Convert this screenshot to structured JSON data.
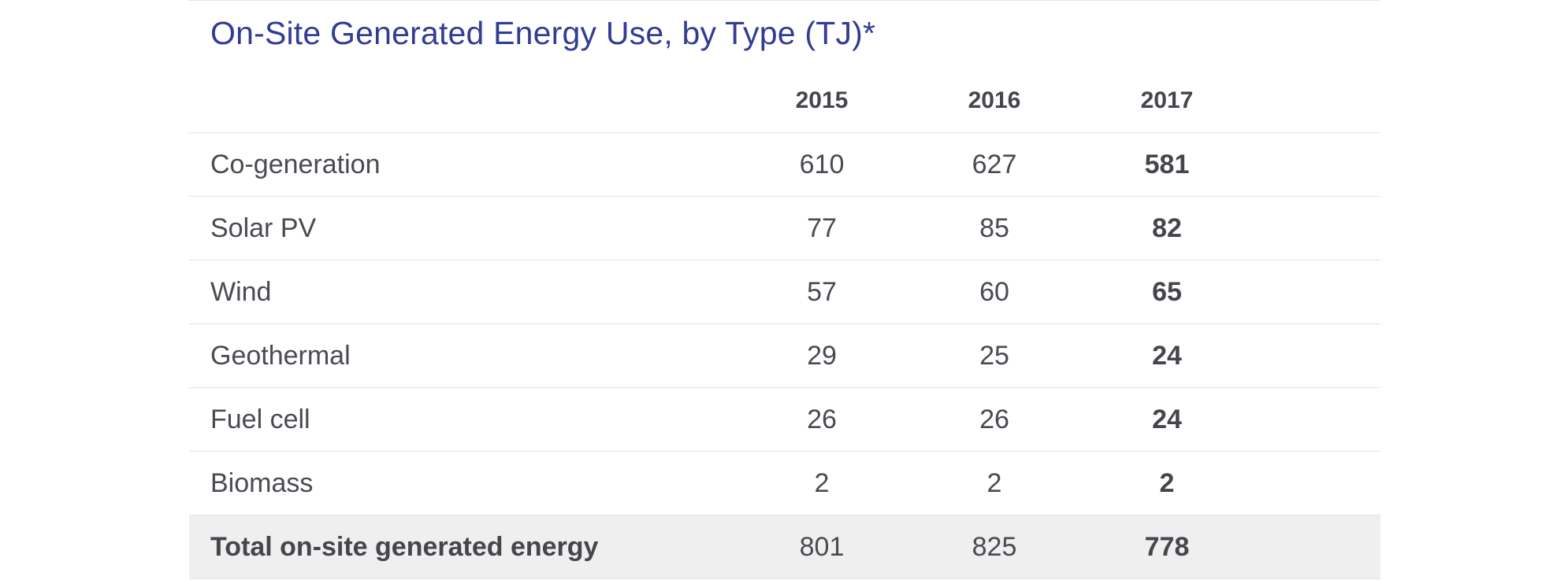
{
  "table": {
    "title": "On-Site Generated Energy Use, by Type (TJ)*",
    "columns": [
      "2015",
      "2016",
      "2017"
    ],
    "rows": [
      {
        "label": "Co-generation",
        "values": [
          "610",
          "627",
          "581"
        ]
      },
      {
        "label": "Solar PV",
        "values": [
          "77",
          "85",
          "82"
        ]
      },
      {
        "label": "Wind",
        "values": [
          "57",
          "60",
          "65"
        ]
      },
      {
        "label": "Geothermal",
        "values": [
          "29",
          "25",
          "24"
        ]
      },
      {
        "label": "Fuel cell",
        "values": [
          "26",
          "26",
          "24"
        ]
      },
      {
        "label": "Biomass",
        "values": [
          "2",
          "2",
          "2"
        ]
      }
    ],
    "total": {
      "label": "Total on-site generated energy",
      "values": [
        "801",
        "825",
        "778"
      ]
    }
  },
  "colors": {
    "title": "#323c94",
    "text": "#4a4a52",
    "rule": "#e2e2e2",
    "total_background": "#efefef"
  }
}
